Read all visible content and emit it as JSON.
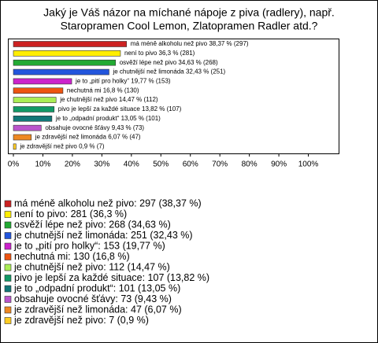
{
  "chart_data": {
    "type": "bar",
    "orientation": "horizontal",
    "title": [
      "Jaký je Váš názor na míchané nápoje z piva (radlery), např.",
      "Staropramen Cool Lemon, Zlatopramen Radler atd.?"
    ],
    "values": [
      38.37,
      36.3,
      34.63,
      32.43,
      19.77,
      16.8,
      14.47,
      13.82,
      13.05,
      9.43,
      6.07,
      0.9
    ],
    "value_labels": [
      "má méně alkoholu než pivo 38,37 % (297)",
      "není to pivo 36,3 % (281)",
      "osvěží lépe než pivo 34,63 % (268)",
      "je chutnější než limonáda 32,43 % (251)",
      "je to „pití pro holky“ 19,77 % (153)",
      "nechutná mi 16,8 % (130)",
      "je chutnější než pivo 14,47 % (112)",
      "pivo je lepší za každé situace 13,82 % (107)",
      "je to „odpadní produkt“ 13,05 % (101)",
      "obsahuje ovocné šťávy 9,43 % (73)",
      "je zdravější než limonáda 6,07 % (47)",
      "je zdravější než pivo 0,9 % (7)"
    ],
    "legend_labels": [
      "má méně alkoholu než pivo: 297 (38,37 %)",
      "není to pivo: 281 (36,3 %)",
      "osvěží lépe než pivo: 268 (34,63 %)",
      "je chutnější než limonáda: 251 (32,43 %)",
      "je to „pití pro holky“: 153 (19,77 %)",
      "nechutná mi: 130 (16,8 %)",
      "je chutnější než pivo: 112 (14,47 %)",
      "pivo je lepší za každé situace: 107 (13,82 %)",
      "je to „odpadní produkt“: 101 (13,05 %)",
      "obsahuje ovocné šťávy: 73 (9,43 %)",
      "je zdravější než limonáda: 47 (6,07 %)",
      "je zdravější než pivo: 7 (0,9 %)"
    ],
    "colors": [
      "#cc2222",
      "#ffee00",
      "#22aa33",
      "#2255dd",
      "#cc22cc",
      "#ee5511",
      "#aaee55",
      "#119966",
      "#117777",
      "#bb55cc",
      "#ee8822",
      "#ffcc22"
    ],
    "xlim": [
      0,
      110
    ],
    "xticks": [
      {
        "value": 0,
        "label": "0%"
      },
      {
        "value": 10,
        "label": "10%"
      },
      {
        "value": 20,
        "label": "20%"
      },
      {
        "value": 30,
        "label": "30%"
      },
      {
        "value": 40,
        "label": "40%"
      },
      {
        "value": 50,
        "label": "50%"
      },
      {
        "value": 60,
        "label": "60%"
      },
      {
        "value": 70,
        "label": "70%"
      },
      {
        "value": 80,
        "label": "80%"
      },
      {
        "value": 90,
        "label": "90%"
      },
      {
        "value": 100,
        "label": "100%"
      }
    ]
  }
}
